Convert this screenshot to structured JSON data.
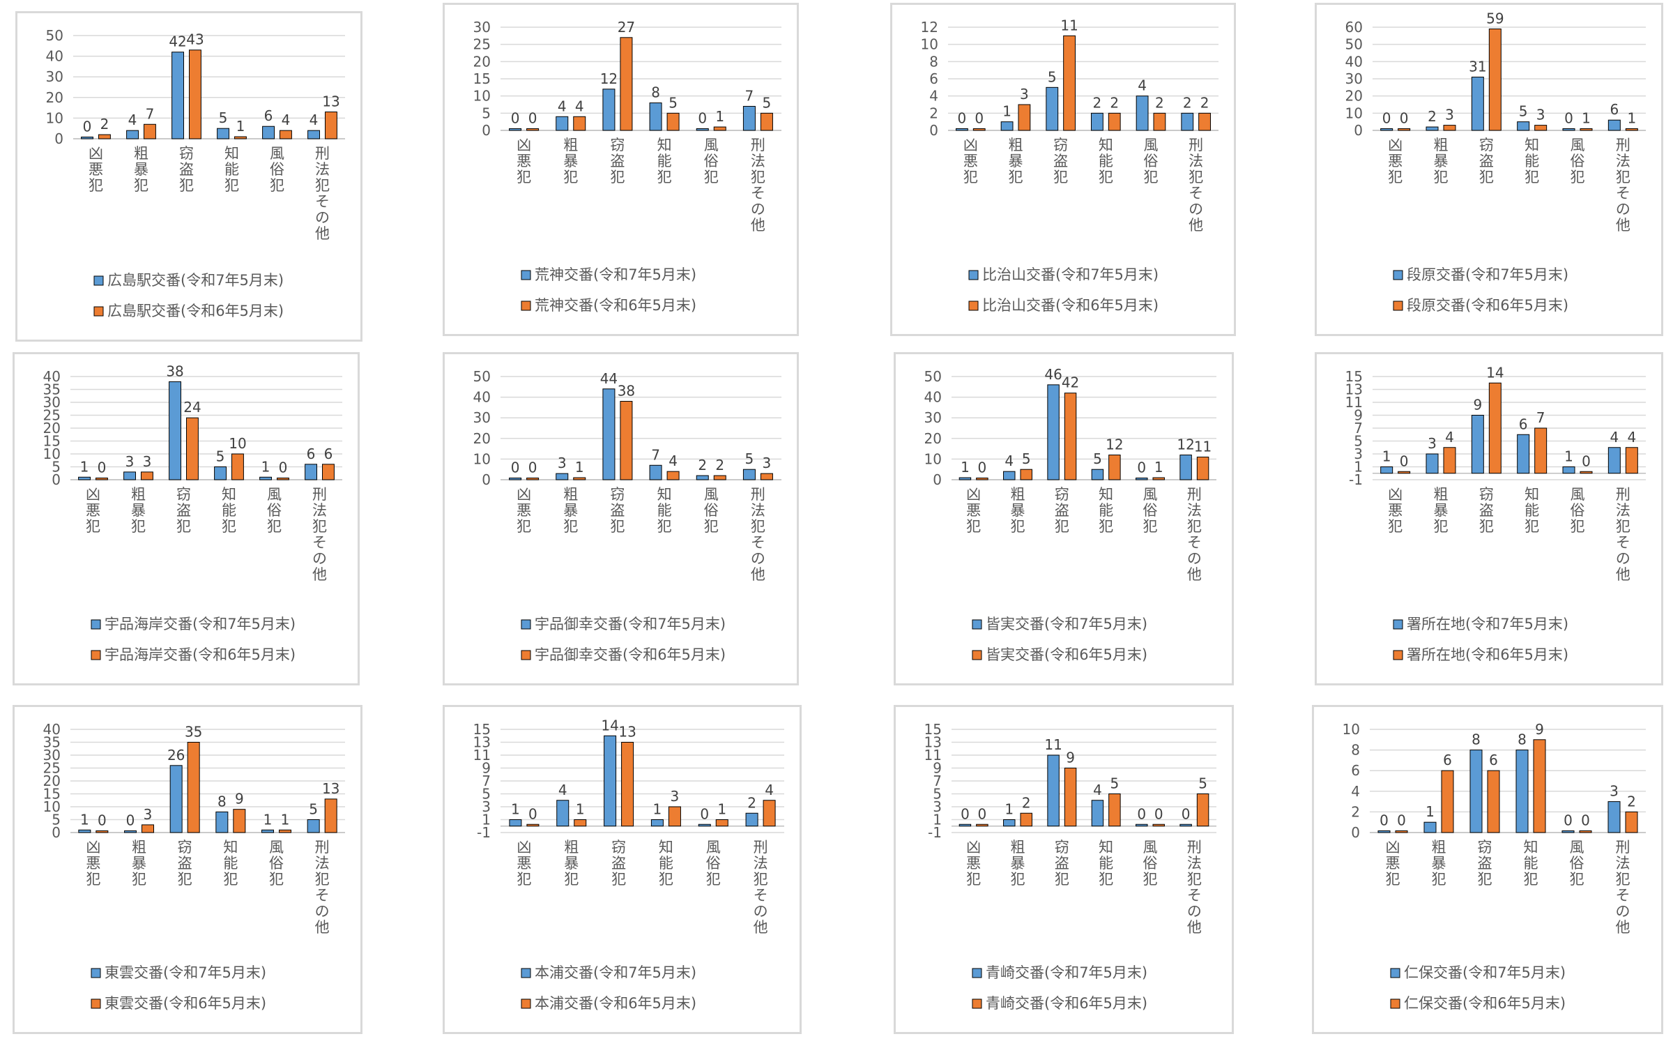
{
  "colors": {
    "series_2025": "#5b9bd5",
    "series_2024": "#ed7d31",
    "gridline": "#d9d9d9",
    "axis_text": "#595959",
    "bar_edge": "#000000"
  },
  "chart_data": [
    {
      "type": "bar",
      "categories": [
        "凶悪犯",
        "粗暴犯",
        "窃盗犯",
        "知能犯",
        "風俗犯",
        "刑法犯その他"
      ],
      "series": [
        {
          "name": "広島駅交番(令和7年5月末)",
          "values": [
            0,
            4,
            42,
            5,
            6,
            4
          ]
        },
        {
          "name": "広島駅交番(令和6年5月末)",
          "values": [
            2,
            7,
            43,
            1,
            4,
            13
          ]
        }
      ],
      "ylim": [
        0,
        50
      ],
      "yticks": [
        "0",
        "10",
        "20",
        "30",
        "40",
        "50"
      ]
    },
    {
      "type": "bar",
      "categories": [
        "凶悪犯",
        "粗暴犯",
        "窃盗犯",
        "知能犯",
        "風俗犯",
        "刑法犯その他"
      ],
      "series": [
        {
          "name": "荒神交番(令和7年5月末)",
          "values": [
            0,
            4,
            12,
            8,
            0,
            7
          ]
        },
        {
          "name": "荒神交番(令和6年5月末)",
          "values": [
            0,
            4,
            27,
            5,
            1,
            5
          ]
        }
      ],
      "ylim": [
        0,
        30
      ],
      "yticks": [
        "0",
        "5",
        "10",
        "15",
        "20",
        "25",
        "30"
      ]
    },
    {
      "type": "bar",
      "categories": [
        "凶悪犯",
        "粗暴犯",
        "窃盗犯",
        "知能犯",
        "風俗犯",
        "刑法犯その他"
      ],
      "series": [
        {
          "name": "比治山交番(令和7年5月末)",
          "values": [
            0,
            1,
            5,
            2,
            4,
            2
          ]
        },
        {
          "name": "比治山交番(令和6年5月末)",
          "values": [
            0,
            3,
            11,
            2,
            2,
            2
          ]
        }
      ],
      "ylim": [
        0,
        12
      ],
      "yticks": [
        "0",
        "2",
        "4",
        "6",
        "8",
        "10",
        "12"
      ]
    },
    {
      "type": "bar",
      "categories": [
        "凶悪犯",
        "粗暴犯",
        "窃盗犯",
        "知能犯",
        "風俗犯",
        "刑法犯その他"
      ],
      "series": [
        {
          "name": "段原交番(令和7年5月末)",
          "values": [
            0,
            2,
            31,
            5,
            0,
            6
          ]
        },
        {
          "name": "段原交番(令和6年5月末)",
          "values": [
            0,
            3,
            59,
            3,
            1,
            1
          ]
        }
      ],
      "ylim": [
        0,
        60
      ],
      "yticks": [
        "0",
        "10",
        "20",
        "30",
        "40",
        "50",
        "60"
      ]
    },
    {
      "type": "bar",
      "categories": [
        "凶悪犯",
        "粗暴犯",
        "窃盗犯",
        "知能犯",
        "風俗犯",
        "刑法犯その他"
      ],
      "series": [
        {
          "name": "宇品海岸交番(令和7年5月末)",
          "values": [
            1,
            3,
            38,
            5,
            1,
            6
          ]
        },
        {
          "name": "宇品海岸交番(令和6年5月末)",
          "values": [
            0,
            3,
            24,
            10,
            0,
            6
          ]
        }
      ],
      "ylim": [
        0,
        40
      ],
      "yticks": [
        "0",
        "5",
        "10",
        "15",
        "20",
        "25",
        "30",
        "35",
        "40"
      ]
    },
    {
      "type": "bar",
      "categories": [
        "凶悪犯",
        "粗暴犯",
        "窃盗犯",
        "知能犯",
        "風俗犯",
        "刑法犯その他"
      ],
      "series": [
        {
          "name": "宇品御幸交番(令和7年5月末)",
          "values": [
            0,
            3,
            44,
            7,
            2,
            5
          ]
        },
        {
          "name": "宇品御幸交番(令和6年5月末)",
          "values": [
            0,
            1,
            38,
            4,
            2,
            3
          ]
        }
      ],
      "ylim": [
        0,
        50
      ],
      "yticks": [
        "0",
        "10",
        "20",
        "30",
        "40",
        "50"
      ]
    },
    {
      "type": "bar",
      "categories": [
        "凶悪犯",
        "粗暴犯",
        "窃盗犯",
        "知能犯",
        "風俗犯",
        "刑法犯その他"
      ],
      "series": [
        {
          "name": "皆実交番(令和7年5月末)",
          "values": [
            1,
            4,
            46,
            5,
            0,
            12
          ]
        },
        {
          "name": "皆実交番(令和6年5月末)",
          "values": [
            0,
            5,
            42,
            12,
            1,
            11
          ]
        }
      ],
      "ylim": [
        0,
        50
      ],
      "yticks": [
        "0",
        "10",
        "20",
        "30",
        "40",
        "50"
      ]
    },
    {
      "type": "bar",
      "categories": [
        "凶悪犯",
        "粗暴犯",
        "窃盗犯",
        "知能犯",
        "風俗犯",
        "刑法犯その他"
      ],
      "series": [
        {
          "name": "署所在地(令和7年5月末)",
          "values": [
            1,
            3,
            9,
            6,
            1,
            4
          ]
        },
        {
          "name": "署所在地(令和6年5月末)",
          "values": [
            0,
            4,
            14,
            7,
            0,
            4
          ]
        }
      ],
      "ylim": [
        -1,
        15
      ],
      "yticks": [
        "-1",
        "1",
        "3",
        "5",
        "7",
        "9",
        "11",
        "13",
        "15"
      ]
    },
    {
      "type": "bar",
      "categories": [
        "凶悪犯",
        "粗暴犯",
        "窃盗犯",
        "知能犯",
        "風俗犯",
        "刑法犯その他"
      ],
      "series": [
        {
          "name": "東雲交番(令和7年5月末)",
          "values": [
            1,
            0,
            26,
            8,
            1,
            5
          ]
        },
        {
          "name": "東雲交番(令和6年5月末)",
          "values": [
            0,
            3,
            35,
            9,
            1,
            13
          ]
        }
      ],
      "ylim": [
        0,
        40
      ],
      "yticks": [
        "0",
        "5",
        "10",
        "15",
        "20",
        "25",
        "30",
        "35",
        "40"
      ]
    },
    {
      "type": "bar",
      "categories": [
        "凶悪犯",
        "粗暴犯",
        "窃盗犯",
        "知能犯",
        "風俗犯",
        "刑法犯その他"
      ],
      "series": [
        {
          "name": "本浦交番(令和7年5月末)",
          "values": [
            1,
            4,
            14,
            1,
            0,
            2
          ]
        },
        {
          "name": "本浦交番(令和6年5月末)",
          "values": [
            0,
            1,
            13,
            3,
            1,
            4
          ]
        }
      ],
      "ylim": [
        -1,
        15
      ],
      "yticks": [
        "-1",
        "1",
        "3",
        "5",
        "7",
        "9",
        "11",
        "13",
        "15"
      ]
    },
    {
      "type": "bar",
      "categories": [
        "凶悪犯",
        "粗暴犯",
        "窃盗犯",
        "知能犯",
        "風俗犯",
        "刑法犯その他"
      ],
      "series": [
        {
          "name": "青崎交番(令和7年5月末)",
          "values": [
            0,
            1,
            11,
            4,
            0,
            0
          ]
        },
        {
          "name": "青崎交番(令和6年5月末)",
          "values": [
            0,
            2,
            9,
            5,
            0,
            5
          ]
        }
      ],
      "ylim": [
        -1,
        15
      ],
      "yticks": [
        "-1",
        "1",
        "3",
        "5",
        "7",
        "9",
        "11",
        "13",
        "15"
      ]
    },
    {
      "type": "bar",
      "categories": [
        "凶悪犯",
        "粗暴犯",
        "窃盗犯",
        "知能犯",
        "風俗犯",
        "刑法犯その他"
      ],
      "series": [
        {
          "name": "仁保交番(令和7年5月末)",
          "values": [
            0,
            1,
            8,
            8,
            0,
            3
          ]
        },
        {
          "name": "仁保交番(令和6年5月末)",
          "values": [
            0,
            6,
            6,
            9,
            0,
            2
          ]
        }
      ],
      "ylim": [
        0,
        10
      ],
      "yticks": [
        "0",
        "2",
        "4",
        "6",
        "8",
        "10"
      ]
    }
  ]
}
